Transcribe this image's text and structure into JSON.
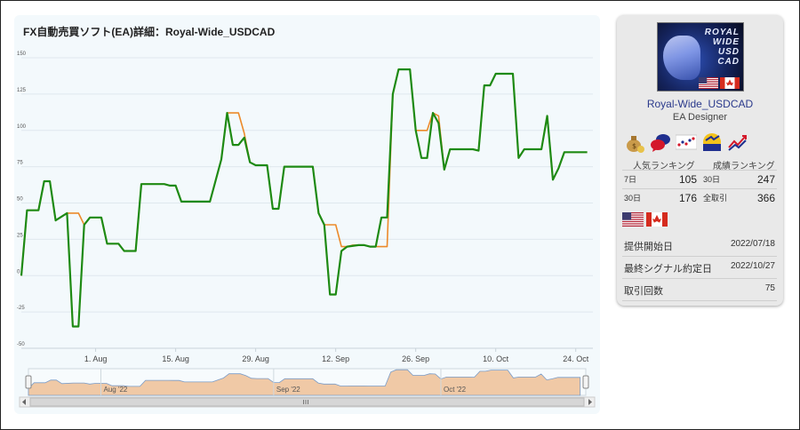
{
  "page": {
    "title": "FX自動売買ソフト(EA)詳細：Royal-Wide_USDCAD"
  },
  "colors": {
    "equity_line": "#1e8a13",
    "balance_line": "#ec8a2a",
    "navigator_fill": "#f0c9a6",
    "navigator_line": "#7a9cc8"
  },
  "chart_data": {
    "type": "line",
    "title": "",
    "y_ticks": [
      150,
      125,
      100,
      75,
      50,
      25,
      0,
      -25,
      -50
    ],
    "ylim": [
      -50,
      150
    ],
    "x_ticks": [
      "1. Aug",
      "15. Aug",
      "29. Aug",
      "12. Sep",
      "26. Sep",
      "10. Oct",
      "24. Oct"
    ],
    "x_tick_days": [
      13,
      27,
      41,
      55,
      69,
      83,
      97
    ],
    "xlim_days": [
      0,
      100
    ],
    "navigator_labels": [
      "Aug '22",
      "Sep '22",
      "Oct '22"
    ],
    "navigator_label_days": [
      13,
      44,
      74
    ],
    "series": [
      {
        "color": "#ec8a2a",
        "points": [
          [
            0,
            0
          ],
          [
            1,
            45
          ],
          [
            3,
            45
          ],
          [
            4,
            65
          ],
          [
            5,
            65
          ],
          [
            6,
            38
          ],
          [
            8,
            43
          ],
          [
            10,
            43
          ],
          [
            11,
            35
          ],
          [
            12,
            40
          ],
          [
            14,
            40
          ],
          [
            15,
            22
          ],
          [
            17,
            22
          ],
          [
            18,
            17
          ],
          [
            20,
            17
          ],
          [
            21,
            63
          ],
          [
            25,
            63
          ],
          [
            26,
            62
          ],
          [
            27,
            62
          ],
          [
            28,
            51
          ],
          [
            33,
            51
          ],
          [
            35,
            80
          ],
          [
            36,
            112
          ],
          [
            38,
            112
          ],
          [
            39,
            98
          ],
          [
            40,
            78
          ],
          [
            41,
            76
          ],
          [
            43,
            76
          ],
          [
            44,
            46
          ],
          [
            45,
            46
          ],
          [
            46,
            75
          ],
          [
            51,
            75
          ],
          [
            52,
            43
          ],
          [
            53,
            35
          ],
          [
            55,
            35
          ],
          [
            56,
            20
          ],
          [
            57,
            20
          ],
          [
            58,
            21
          ],
          [
            59,
            21
          ],
          [
            60,
            21
          ],
          [
            61,
            20
          ],
          [
            62,
            20
          ],
          [
            63,
            20
          ],
          [
            64,
            20
          ],
          [
            65,
            125
          ],
          [
            66,
            142
          ],
          [
            68,
            142
          ],
          [
            69,
            100
          ],
          [
            70,
            100
          ],
          [
            71,
            100
          ],
          [
            72,
            112
          ],
          [
            73,
            110
          ],
          [
            74,
            73
          ],
          [
            75,
            87
          ],
          [
            79,
            87
          ],
          [
            80,
            86
          ],
          [
            81,
            131
          ],
          [
            82,
            131
          ],
          [
            83,
            139
          ],
          [
            86,
            139
          ],
          [
            87,
            81
          ],
          [
            88,
            87
          ],
          [
            91,
            87
          ],
          [
            92,
            110
          ],
          [
            93,
            66
          ],
          [
            94,
            74
          ],
          [
            95,
            85
          ],
          [
            99,
            85
          ]
        ]
      },
      {
        "color": "#1e8a13",
        "points": [
          [
            0,
            0
          ],
          [
            1,
            45
          ],
          [
            3,
            45
          ],
          [
            4,
            65
          ],
          [
            5,
            65
          ],
          [
            6,
            38
          ],
          [
            8,
            43
          ],
          [
            9,
            -35
          ],
          [
            10,
            -35
          ],
          [
            11,
            35
          ],
          [
            12,
            40
          ],
          [
            14,
            40
          ],
          [
            15,
            22
          ],
          [
            17,
            22
          ],
          [
            18,
            17
          ],
          [
            20,
            17
          ],
          [
            21,
            63
          ],
          [
            25,
            63
          ],
          [
            26,
            62
          ],
          [
            27,
            62
          ],
          [
            28,
            51
          ],
          [
            33,
            51
          ],
          [
            35,
            80
          ],
          [
            36,
            112
          ],
          [
            37,
            90
          ],
          [
            38,
            90
          ],
          [
            39,
            95
          ],
          [
            40,
            78
          ],
          [
            41,
            76
          ],
          [
            43,
            76
          ],
          [
            44,
            46
          ],
          [
            45,
            46
          ],
          [
            46,
            75
          ],
          [
            51,
            75
          ],
          [
            52,
            43
          ],
          [
            53,
            35
          ],
          [
            54,
            -13
          ],
          [
            55,
            -13
          ],
          [
            56,
            17
          ],
          [
            57,
            20
          ],
          [
            59,
            21
          ],
          [
            60,
            21
          ],
          [
            61,
            20
          ],
          [
            62,
            20
          ],
          [
            63,
            40
          ],
          [
            64,
            40
          ],
          [
            65,
            125
          ],
          [
            66,
            142
          ],
          [
            68,
            142
          ],
          [
            69,
            100
          ],
          [
            70,
            81
          ],
          [
            71,
            81
          ],
          [
            72,
            112
          ],
          [
            73,
            105
          ],
          [
            74,
            73
          ],
          [
            75,
            87
          ],
          [
            79,
            87
          ],
          [
            80,
            86
          ],
          [
            81,
            131
          ],
          [
            82,
            131
          ],
          [
            83,
            139
          ],
          [
            86,
            139
          ],
          [
            87,
            81
          ],
          [
            88,
            87
          ],
          [
            91,
            87
          ],
          [
            92,
            110
          ],
          [
            93,
            66
          ],
          [
            94,
            74
          ],
          [
            95,
            85
          ],
          [
            99,
            85
          ]
        ]
      }
    ]
  },
  "sidebar": {
    "logo_text": [
      "ROYAL",
      "WIDE",
      "USD",
      "CAD"
    ],
    "ea_name": "Royal-Wide_USDCAD",
    "designer": "EA Designer",
    "badge_icons": [
      "money-bag-icon",
      "speech-bubbles-icon",
      "dot-chart-icon",
      "rising-sun-icon",
      "trend-arrow-icon"
    ],
    "popularity_label": "人気ランキング",
    "performance_label": "成績ランキング",
    "rank_rows": [
      {
        "left_label": "7日",
        "left_value": "105",
        "right_label": "30日",
        "right_value": "247"
      },
      {
        "left_label": "30日",
        "left_value": "176",
        "right_label": "全取引",
        "right_value": "366"
      }
    ],
    "info_rows": [
      {
        "label": "提供開始日",
        "value": "2022/07/18"
      },
      {
        "label": "最終シグナル約定日",
        "value": "2022/10/27"
      },
      {
        "label": "取引回数",
        "value": "75"
      }
    ]
  }
}
